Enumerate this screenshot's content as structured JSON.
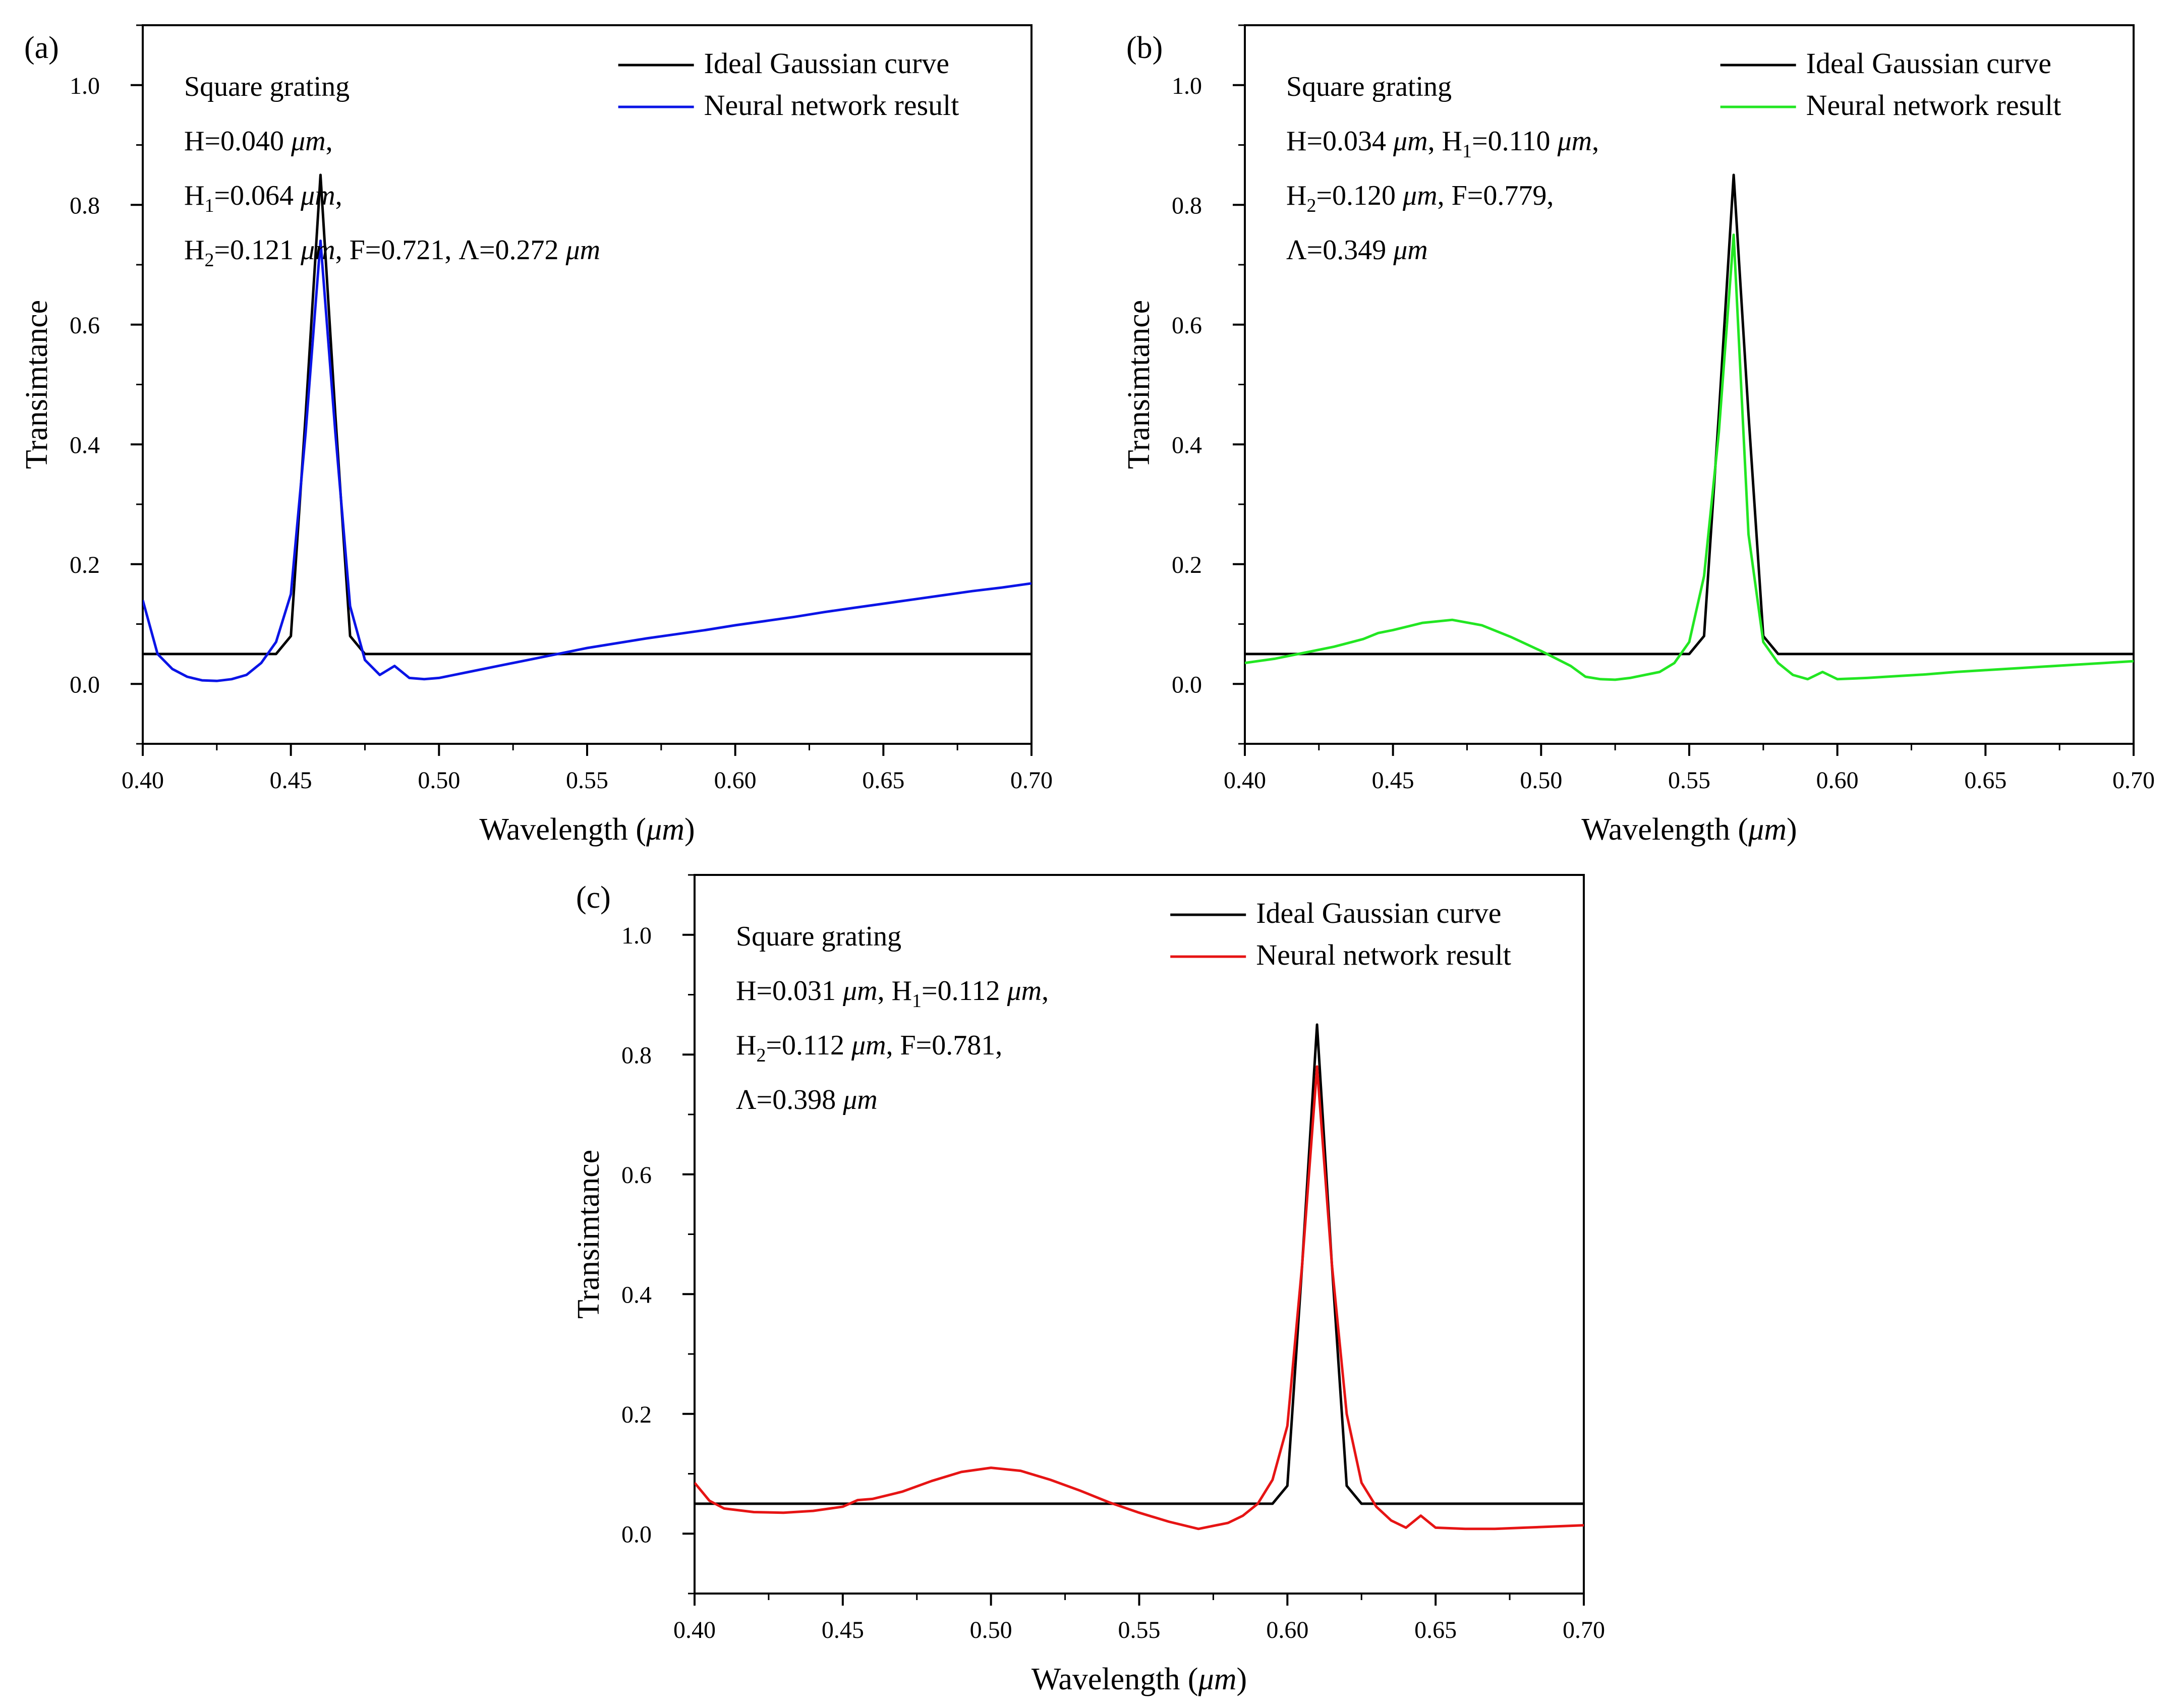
{
  "chart_data": [
    {
      "panel_label": "(a)",
      "type": "line",
      "xlabel": "Wavelength (μm)",
      "ylabel": "Transimtance",
      "xlim": [
        0.4,
        0.7
      ],
      "ylim": [
        -0.1,
        1.1
      ],
      "xticks": [
        "0.40",
        "0.45",
        "0.50",
        "0.55",
        "0.60",
        "0.65",
        "0.70"
      ],
      "yticks": [
        "0.0",
        "0.2",
        "0.4",
        "0.6",
        "0.8",
        "1.0"
      ],
      "legend": [
        "Ideal Gaussian curve",
        "Neural network result"
      ],
      "legend_position": "top-right",
      "annotation": [
        [
          {
            "t": "Square grating"
          }
        ],
        [
          {
            "t": "H=0.040 "
          },
          {
            "t": "μm",
            "i": 1
          },
          {
            "t": ","
          }
        ],
        [
          {
            "t": "H"
          },
          {
            "t": "1",
            "s": 1
          },
          {
            "t": "=0.064 "
          },
          {
            "t": "μm",
            "i": 1
          },
          {
            "t": ","
          }
        ],
        [
          {
            "t": "H"
          },
          {
            "t": "2",
            "s": 1
          },
          {
            "t": "=0.121 "
          },
          {
            "t": "μm",
            "i": 1
          },
          {
            "t": ",  F=0.721, Λ=0.272 "
          },
          {
            "t": "μm",
            "i": 1
          }
        ]
      ],
      "series": [
        {
          "name": "Ideal Gaussian curve",
          "color": "#000000",
          "x": [
            0.4,
            0.445,
            0.45,
            0.455,
            0.46,
            0.465,
            0.47,
            0.475,
            0.7
          ],
          "y": [
            0.05,
            0.05,
            0.08,
            0.45,
            0.85,
            0.45,
            0.08,
            0.05,
            0.05
          ]
        },
        {
          "name": "Neural network result",
          "color": "#0a14e6",
          "x": [
            0.4,
            0.405,
            0.41,
            0.415,
            0.42,
            0.425,
            0.43,
            0.435,
            0.44,
            0.445,
            0.45,
            0.455,
            0.46,
            0.465,
            0.47,
            0.475,
            0.48,
            0.485,
            0.49,
            0.495,
            0.5,
            0.51,
            0.52,
            0.53,
            0.54,
            0.55,
            0.56,
            0.57,
            0.58,
            0.59,
            0.6,
            0.61,
            0.62,
            0.63,
            0.64,
            0.65,
            0.66,
            0.67,
            0.68,
            0.69,
            0.7
          ],
          "y": [
            0.14,
            0.05,
            0.025,
            0.012,
            0.006,
            0.005,
            0.008,
            0.015,
            0.035,
            0.07,
            0.15,
            0.42,
            0.74,
            0.42,
            0.13,
            0.04,
            0.015,
            0.03,
            0.01,
            0.008,
            0.01,
            0.02,
            0.03,
            0.04,
            0.05,
            0.06,
            0.068,
            0.076,
            0.083,
            0.09,
            0.098,
            0.105,
            0.112,
            0.12,
            0.127,
            0.134,
            0.141,
            0.148,
            0.155,
            0.161,
            0.168
          ]
        }
      ]
    },
    {
      "panel_label": "(b)",
      "type": "line",
      "xlabel": "Wavelength (μm)",
      "ylabel": "Transimtance",
      "xlim": [
        0.4,
        0.7
      ],
      "ylim": [
        -0.1,
        1.1
      ],
      "xticks": [
        "0.40",
        "0.45",
        "0.50",
        "0.55",
        "0.60",
        "0.65",
        "0.70"
      ],
      "yticks": [
        "0.0",
        "0.2",
        "0.4",
        "0.6",
        "0.8",
        "1.0"
      ],
      "legend": [
        "Ideal Gaussian curve",
        "Neural network result"
      ],
      "legend_position": "top-right",
      "annotation": [
        [
          {
            "t": "Square grating"
          }
        ],
        [
          {
            "t": "H=0.034 "
          },
          {
            "t": "μm",
            "i": 1
          },
          {
            "t": ", H"
          },
          {
            "t": "1",
            "s": 1
          },
          {
            "t": "=0.110 "
          },
          {
            "t": "μm",
            "i": 1
          },
          {
            "t": ","
          }
        ],
        [
          {
            "t": "H"
          },
          {
            "t": "2",
            "s": 1
          },
          {
            "t": "=0.120 "
          },
          {
            "t": "μm",
            "i": 1
          },
          {
            "t": ", F=0.779,"
          }
        ],
        [
          {
            "t": "Λ=0.349 "
          },
          {
            "t": "μm",
            "i": 1
          }
        ]
      ],
      "series": [
        {
          "name": "Ideal Gaussian curve",
          "color": "#000000",
          "x": [
            0.4,
            0.55,
            0.555,
            0.56,
            0.565,
            0.57,
            0.575,
            0.58,
            0.7
          ],
          "y": [
            0.05,
            0.05,
            0.08,
            0.45,
            0.85,
            0.45,
            0.08,
            0.05,
            0.05
          ]
        },
        {
          "name": "Neural network result",
          "color": "#22e622",
          "x": [
            0.4,
            0.41,
            0.42,
            0.43,
            0.44,
            0.445,
            0.45,
            0.46,
            0.47,
            0.48,
            0.49,
            0.5,
            0.51,
            0.515,
            0.52,
            0.525,
            0.53,
            0.54,
            0.545,
            0.55,
            0.555,
            0.56,
            0.565,
            0.57,
            0.575,
            0.58,
            0.585,
            0.59,
            0.595,
            0.6,
            0.61,
            0.62,
            0.63,
            0.64,
            0.65,
            0.66,
            0.67,
            0.68,
            0.69,
            0.7
          ],
          "y": [
            0.035,
            0.042,
            0.052,
            0.062,
            0.075,
            0.085,
            0.09,
            0.102,
            0.107,
            0.098,
            0.078,
            0.055,
            0.03,
            0.012,
            0.008,
            0.007,
            0.01,
            0.02,
            0.035,
            0.07,
            0.18,
            0.42,
            0.75,
            0.25,
            0.07,
            0.035,
            0.015,
            0.008,
            0.02,
            0.008,
            0.01,
            0.013,
            0.016,
            0.02,
            0.023,
            0.026,
            0.029,
            0.032,
            0.035,
            0.038
          ]
        }
      ]
    },
    {
      "panel_label": "(c)",
      "type": "line",
      "xlabel": "Wavelength (μm)",
      "ylabel": "Transimtance",
      "xlim": [
        0.4,
        0.7
      ],
      "ylim": [
        -0.1,
        1.1
      ],
      "xticks": [
        "0.40",
        "0.45",
        "0.50",
        "0.55",
        "0.60",
        "0.65",
        "0.70"
      ],
      "yticks": [
        "0.0",
        "0.2",
        "0.4",
        "0.6",
        "0.8",
        "1.0"
      ],
      "legend": [
        "Ideal Gaussian curve",
        "Neural network result"
      ],
      "legend_position": "top-right",
      "annotation": [
        [
          {
            "t": "Square grating"
          }
        ],
        [
          {
            "t": "H=0.031 "
          },
          {
            "t": "μm",
            "i": 1
          },
          {
            "t": ", H"
          },
          {
            "t": "1",
            "s": 1
          },
          {
            "t": "=0.112 "
          },
          {
            "t": "μm",
            "i": 1
          },
          {
            "t": ","
          }
        ],
        [
          {
            "t": "H"
          },
          {
            "t": "2",
            "s": 1
          },
          {
            "t": "=0.112 "
          },
          {
            "t": "μm",
            "i": 1
          },
          {
            "t": ", F=0.781,"
          }
        ],
        [
          {
            "t": "Λ=0.398 "
          },
          {
            "t": "μm",
            "i": 1
          }
        ]
      ],
      "series": [
        {
          "name": "Ideal Gaussian curve",
          "color": "#000000",
          "x": [
            0.4,
            0.595,
            0.6,
            0.605,
            0.61,
            0.615,
            0.62,
            0.625,
            0.7
          ],
          "y": [
            0.05,
            0.05,
            0.08,
            0.45,
            0.85,
            0.45,
            0.08,
            0.05,
            0.05
          ]
        },
        {
          "name": "Neural network result",
          "color": "#e61414",
          "x": [
            0.4,
            0.405,
            0.41,
            0.42,
            0.43,
            0.44,
            0.45,
            0.455,
            0.46,
            0.47,
            0.48,
            0.49,
            0.5,
            0.51,
            0.52,
            0.53,
            0.54,
            0.55,
            0.56,
            0.57,
            0.58,
            0.585,
            0.59,
            0.595,
            0.6,
            0.605,
            0.61,
            0.615,
            0.62,
            0.625,
            0.63,
            0.635,
            0.64,
            0.645,
            0.65,
            0.66,
            0.67,
            0.68,
            0.69,
            0.7
          ],
          "y": [
            0.085,
            0.055,
            0.042,
            0.036,
            0.035,
            0.038,
            0.045,
            0.056,
            0.058,
            0.07,
            0.088,
            0.103,
            0.11,
            0.105,
            0.09,
            0.072,
            0.052,
            0.035,
            0.02,
            0.008,
            0.018,
            0.03,
            0.05,
            0.09,
            0.18,
            0.45,
            0.78,
            0.45,
            0.2,
            0.085,
            0.045,
            0.022,
            0.01,
            0.03,
            0.01,
            0.008,
            0.008,
            0.01,
            0.012,
            0.014
          ]
        }
      ]
    }
  ]
}
